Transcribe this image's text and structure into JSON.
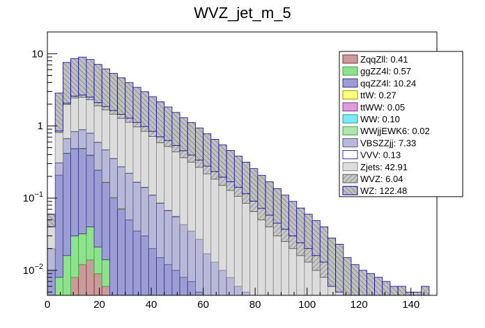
{
  "chart_data": {
    "type": "bar",
    "title": "WVZ_jet_m_5",
    "log_y": true,
    "xlim": [
      0,
      150
    ],
    "ylim": [
      0.0045,
      20
    ],
    "x_ticks": [
      0,
      20,
      40,
      60,
      80,
      100,
      120,
      140
    ],
    "x_tick_labels": [
      "0",
      "20",
      "40",
      "60",
      "80",
      "100",
      "120",
      "140"
    ],
    "y_ticks": [
      {
        "value": 10,
        "base": "10",
        "exp": ""
      },
      {
        "value": 1,
        "base": "1",
        "exp": ""
      },
      {
        "value": 0.1,
        "base": "10",
        "exp": "−1"
      },
      {
        "value": 0.01,
        "base": "10",
        "exp": "−2"
      }
    ],
    "legend_position": "top-right",
    "legend": [
      {
        "label": "ZqqZll: 0.41",
        "fill": "#c99b9b",
        "edge": "#8a2a2a",
        "hatch": false
      },
      {
        "label": "ggZZ4l: 0.57",
        "fill": "#8fe08f",
        "edge": "#33aa33",
        "hatch": false
      },
      {
        "label": "qqZZ4l: 10.24",
        "fill": "#9d9dd6",
        "edge": "#33338a",
        "hatch": false
      },
      {
        "label": "ttW: 0.27",
        "fill": "#ffff80",
        "edge": "#999900",
        "hatch": false
      },
      {
        "label": "ttWW: 0.05",
        "fill": "#dd9ddd",
        "edge": "#883388",
        "hatch": false
      },
      {
        "label": "WW: 0.10",
        "fill": "#80e8f0",
        "edge": "#2299aa",
        "hatch": false
      },
      {
        "label": "WWjjEWK6: 0.02",
        "fill": "#aee6ae",
        "edge": "#449944",
        "hatch": false
      },
      {
        "label": "VBSZZjj: 7.33",
        "fill": "#b8b8d8",
        "edge": "#555588",
        "hatch": false
      },
      {
        "label": "VVV: 0.13",
        "fill": "#ffffff",
        "edge": "#3333aa",
        "hatch": false
      },
      {
        "label": "Zjets: 42.91",
        "fill": "#dcdcdc",
        "edge": "#888888",
        "hatch": false
      },
      {
        "label": "WVZ: 6.04",
        "fill": "#c8c8c8",
        "edge": "#555555",
        "hatch": true
      },
      {
        "label": "WZ: 122.48",
        "fill": "#c0c0c0",
        "edge": "#0000aa",
        "hatch": true
      }
    ],
    "x": [
      1.5,
      4.5,
      7.5,
      10.5,
      13.5,
      16.5,
      19.5,
      22.5,
      25.5,
      28.5,
      31.5,
      34.5,
      37.5,
      40.5,
      43.5,
      46.5,
      49.5,
      52.5,
      55.5,
      58.5,
      61.5,
      64.5,
      67.5,
      70.5,
      73.5,
      76.5,
      79.5,
      82.5,
      85.5,
      88.5,
      91.5,
      94.5,
      97.5,
      100.5,
      103.5,
      106.5,
      109.5,
      112.5,
      115.5,
      118.5,
      121.5,
      124.5,
      127.5,
      130.5,
      133.5,
      136.5,
      139.5,
      142.5,
      145.5,
      148.5
    ],
    "series": [
      {
        "name": "ZqqZll: 0.41",
        "values": [
          0,
          0.003,
          0.004,
          0.008,
          0.012,
          0.014,
          0.009,
          0.006,
          0,
          0,
          0,
          0,
          0,
          0,
          0,
          0,
          0,
          0,
          0,
          0,
          0,
          0,
          0,
          0,
          0,
          0,
          0,
          0,
          0,
          0,
          0,
          0,
          0,
          0,
          0,
          0,
          0,
          0,
          0,
          0,
          0,
          0,
          0,
          0,
          0,
          0,
          0,
          0,
          0,
          0
        ]
      },
      {
        "name": "ggZZ4l: 0.57",
        "values": [
          0,
          0.005,
          0.012,
          0.022,
          0.02,
          0.026,
          0.012,
          0.008,
          0,
          0,
          0,
          0,
          0,
          0,
          0,
          0,
          0,
          0,
          0,
          0,
          0,
          0,
          0,
          0,
          0,
          0,
          0,
          0,
          0,
          0,
          0,
          0,
          0,
          0,
          0,
          0,
          0,
          0,
          0,
          0,
          0,
          0,
          0,
          0,
          0,
          0,
          0,
          0,
          0,
          0
        ]
      },
      {
        "name": "qqZZ4l: 10.24",
        "values": [
          0.01,
          0.2,
          0.4,
          0.45,
          0.45,
          0.35,
          0.22,
          0.15,
          0.1,
          0.07,
          0.05,
          0.035,
          0.03,
          0.02,
          0.015,
          0.012,
          0.01,
          0.008,
          0.007,
          0.005,
          0,
          0,
          0,
          0,
          0,
          0,
          0,
          0,
          0,
          0,
          0,
          0,
          0,
          0,
          0,
          0,
          0,
          0,
          0,
          0,
          0,
          0,
          0,
          0,
          0,
          0,
          0,
          0,
          0,
          0
        ]
      },
      {
        "name": "ttW: 0.27",
        "values": [
          0,
          0,
          0.002,
          0.003,
          0.003,
          0.003,
          0.002,
          0.002,
          0.002,
          0.001,
          0,
          0,
          0,
          0,
          0,
          0,
          0,
          0,
          0,
          0,
          0,
          0,
          0,
          0,
          0,
          0,
          0,
          0,
          0,
          0,
          0,
          0,
          0,
          0,
          0,
          0,
          0,
          0,
          0,
          0,
          0,
          0,
          0,
          0,
          0,
          0,
          0,
          0,
          0,
          0
        ]
      },
      {
        "name": "ttWW: 0.05",
        "values": [
          0,
          0,
          0,
          0.001,
          0.001,
          0.001,
          0,
          0,
          0,
          0,
          0,
          0,
          0,
          0,
          0,
          0,
          0,
          0,
          0,
          0,
          0,
          0,
          0,
          0,
          0,
          0,
          0,
          0,
          0,
          0,
          0,
          0,
          0,
          0,
          0,
          0,
          0,
          0,
          0,
          0,
          0,
          0,
          0,
          0,
          0,
          0,
          0,
          0,
          0,
          0
        ]
      },
      {
        "name": "WW: 0.10",
        "values": [
          0,
          0,
          0.001,
          0.001,
          0.001,
          0.001,
          0.001,
          0,
          0,
          0,
          0,
          0,
          0,
          0,
          0,
          0,
          0,
          0,
          0,
          0,
          0,
          0,
          0,
          0,
          0,
          0,
          0,
          0,
          0,
          0,
          0,
          0,
          0,
          0,
          0,
          0,
          0,
          0,
          0,
          0,
          0,
          0,
          0,
          0,
          0,
          0,
          0,
          0,
          0,
          0
        ]
      },
      {
        "name": "WWjjEWK6: 0.02",
        "values": [
          0,
          0,
          0,
          0,
          0.001,
          0,
          0,
          0,
          0,
          0,
          0,
          0,
          0,
          0,
          0,
          0,
          0,
          0,
          0,
          0,
          0,
          0,
          0,
          0,
          0,
          0,
          0,
          0,
          0,
          0,
          0,
          0,
          0,
          0,
          0,
          0,
          0,
          0,
          0,
          0,
          0,
          0,
          0,
          0,
          0,
          0,
          0,
          0,
          0,
          0
        ]
      },
      {
        "name": "VBSZZjj: 7.33",
        "values": [
          0.01,
          0.1,
          0.25,
          0.35,
          0.4,
          0.4,
          0.35,
          0.3,
          0.25,
          0.2,
          0.17,
          0.13,
          0.11,
          0.09,
          0.07,
          0.055,
          0.045,
          0.035,
          0.028,
          0.022,
          0.017,
          0.013,
          0.01,
          0.008,
          0.006,
          0.005,
          0,
          0,
          0,
          0,
          0,
          0,
          0,
          0,
          0,
          0,
          0,
          0,
          0,
          0,
          0,
          0,
          0,
          0,
          0,
          0,
          0,
          0,
          0,
          0
        ]
      },
      {
        "name": "VVV: 0.13",
        "values": [
          0,
          0.001,
          0.002,
          0.003,
          0.004,
          0.004,
          0.004,
          0.003,
          0.003,
          0.003,
          0.002,
          0.002,
          0.002,
          0.001,
          0.001,
          0.001,
          0.001,
          0,
          0,
          0,
          0,
          0,
          0,
          0,
          0,
          0,
          0,
          0,
          0,
          0,
          0,
          0,
          0,
          0,
          0,
          0,
          0,
          0,
          0,
          0,
          0,
          0,
          0,
          0,
          0,
          0,
          0,
          0,
          0,
          0
        ]
      },
      {
        "name": "Zjets: 42.91",
        "values": [
          0.02,
          0.5,
          1.3,
          1.6,
          1.6,
          1.5,
          1.3,
          1.2,
          1.1,
          1.0,
          0.9,
          0.8,
          0.7,
          0.6,
          0.5,
          0.45,
          0.38,
          0.32,
          0.28,
          0.24,
          0.2,
          0.17,
          0.14,
          0.12,
          0.1,
          0.08,
          0.065,
          0.05,
          0.04,
          0.03,
          0.025,
          0.02,
          0.016,
          0.013,
          0.01,
          0.008,
          0.006,
          0.005,
          0,
          0,
          0,
          0,
          0,
          0,
          0,
          0,
          0,
          0,
          0,
          0
        ]
      },
      {
        "name": "WVZ: 6.04",
        "values": [
          0,
          0.04,
          0.1,
          0.15,
          0.18,
          0.2,
          0.2,
          0.19,
          0.18,
          0.17,
          0.16,
          0.15,
          0.14,
          0.13,
          0.12,
          0.11,
          0.1,
          0.09,
          0.08,
          0.07,
          0.06,
          0.05,
          0.045,
          0.04,
          0.035,
          0.03,
          0.026,
          0.022,
          0.018,
          0.015,
          0.012,
          0.01,
          0.008,
          0.007,
          0.006,
          0.005,
          0,
          0,
          0,
          0,
          0,
          0,
          0,
          0,
          0,
          0,
          0,
          0,
          0,
          0
        ]
      },
      {
        "name": "WZ: 122.48",
        "values": [
          0.02,
          2.0,
          5.5,
          6.0,
          6.3,
          5.8,
          5.0,
          4.3,
          3.7,
          3.2,
          2.7,
          2.3,
          2.0,
          1.7,
          1.45,
          1.2,
          1.0,
          0.85,
          0.72,
          0.6,
          0.5,
          0.42,
          0.35,
          0.29,
          0.24,
          0.2,
          0.165,
          0.135,
          0.11,
          0.09,
          0.073,
          0.06,
          0.049,
          0.04,
          0.033,
          0.027,
          0.022,
          0.018,
          0.015,
          0.012,
          0.01,
          0.009,
          0.008,
          0.007,
          0.006,
          0.006,
          0.005,
          0.005,
          0.006,
          0
        ]
      }
    ]
  }
}
